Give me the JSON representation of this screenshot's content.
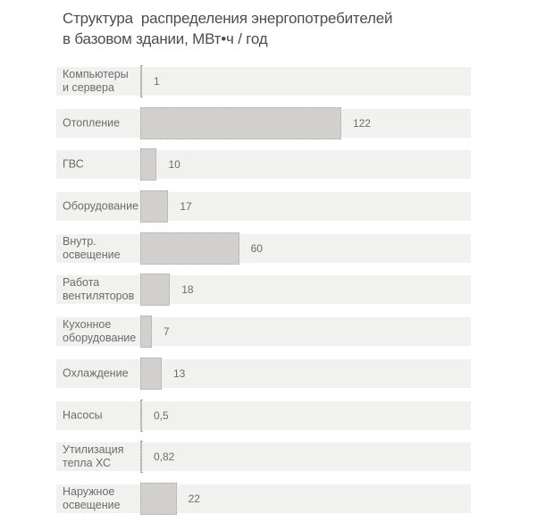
{
  "title": "Структура  распределения энергопотребителей\nв базовом здании, МВт•ч / год",
  "colors": {
    "background": "#ffffff",
    "row_stripe": "#f1f1f0",
    "bar_fill": "#d1d0cf",
    "bar_border": "#a9a8a6",
    "title_text": "#4d4d4d",
    "label_text": "#6c6c6c"
  },
  "chart_data": {
    "type": "bar",
    "orientation": "horizontal",
    "title": "Структура  распределения энергопотребителей\nв базовом здании, МВт•ч / год",
    "xlabel": "",
    "ylabel": "",
    "unit": "МВт•ч / год",
    "xlim": [
      0,
      200
    ],
    "grid": false,
    "legend": false,
    "categories": [
      "Компьютеры\nи сервера",
      "Отопление",
      "ГВС",
      "Оборудование",
      "Внутр.\nосвещение",
      "Работа\nвентиляторов",
      "Кухонное\nоборудование",
      "Охлаждение",
      "Насосы",
      "Утилизация\nтепла ХС",
      "Наружное\nосвещение"
    ],
    "values": [
      1,
      122,
      10,
      17,
      60,
      18,
      7,
      13,
      0.5,
      0.82,
      22
    ],
    "value_labels": [
      "1",
      "122",
      "10",
      "17",
      "60",
      "18",
      "7",
      "13",
      "0,5",
      "0,82",
      "22"
    ]
  }
}
